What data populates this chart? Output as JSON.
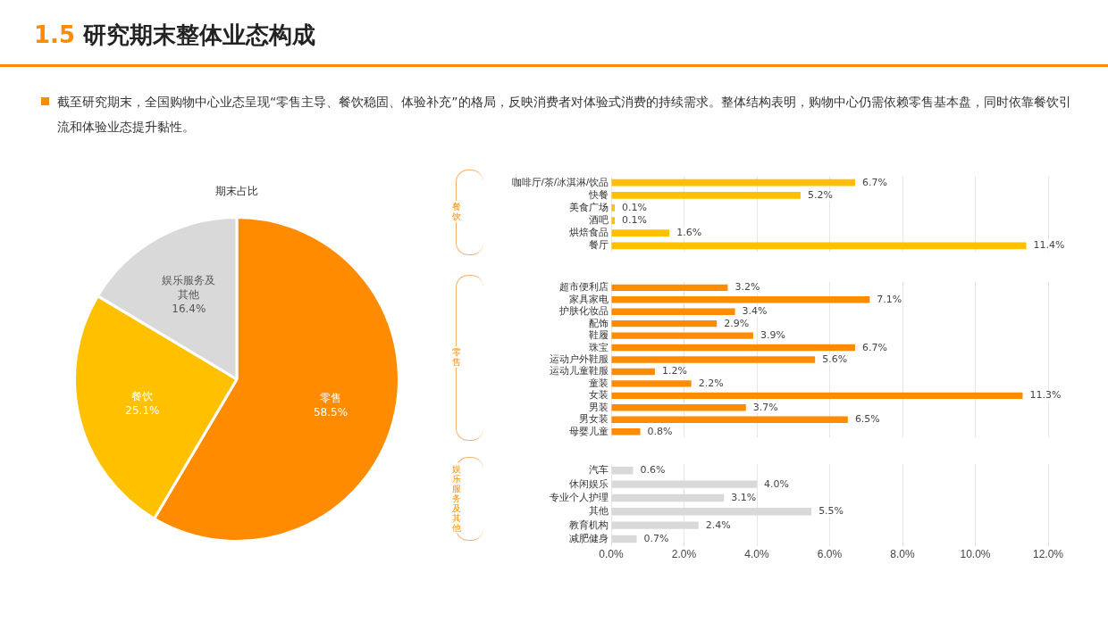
{
  "chart_data": [
    {
      "type": "other",
      "title": "1.5 研究期末整体业态构成",
      "subtitle": "截至研究期末，全国购物中心业态呈现“零售主导、餐饮稳固、体验补充”的格局，反映消费者对体验式消费的持续需求。整体结构表明，购物中心仍需依赖零售基本盘，同时依靠餐饮引流和体验业态提升黏性。"
    },
    {
      "type": "pie",
      "title": "期末占比",
      "categories": [
        "零售",
        "餐饮",
        "娱乐服务及其他"
      ],
      "values": [
        58.5,
        25.1,
        16.4
      ],
      "colors": [
        "#ff8c00",
        "#ffc000",
        "#d9d9d9"
      ],
      "value_labels": [
        "58.5%",
        "25.1%",
        "16.4%"
      ]
    },
    {
      "type": "bar",
      "orientation": "horizontal",
      "ylabel": "餐饮",
      "categories": [
        "咖啡厅/茶/冰淇淋/饮品",
        "快餐",
        "美食广场",
        "酒吧",
        "烘焙食品",
        "餐厅"
      ],
      "values": [
        6.7,
        5.2,
        0.1,
        0.1,
        1.6,
        11.4
      ],
      "color": "#ffc000",
      "value_labels": [
        "6.7%",
        "5.2%",
        "0.1%",
        "0.1%",
        "1.6%",
        "11.4%"
      ],
      "xlim": [
        0,
        12
      ],
      "xticks": [
        0,
        2,
        4,
        6,
        8,
        10,
        12
      ],
      "grid": "x",
      "tick_labels": "y"
    },
    {
      "type": "bar",
      "orientation": "horizontal",
      "ylabel": "零售",
      "categories": [
        "超市便利店",
        "家具家电",
        "护肤化妆品",
        "配饰",
        "鞋履",
        "珠宝",
        "运动户外鞋服",
        "运动儿童鞋服",
        "童装",
        "女装",
        "男装",
        "男女装",
        "母婴儿童"
      ],
      "values": [
        3.2,
        7.1,
        3.4,
        2.9,
        3.9,
        6.7,
        5.6,
        1.2,
        2.2,
        11.3,
        3.7,
        6.5,
        0.8
      ],
      "color": "#ff8c00",
      "value_labels": [
        "3.2%",
        "7.1%",
        "3.4%",
        "2.9%",
        "3.9%",
        "6.7%",
        "5.6%",
        "1.2%",
        "2.2%",
        "11.3%",
        "3.7%",
        "6.5%",
        "0.8%"
      ],
      "xlim": [
        0,
        12
      ],
      "xticks": [
        0,
        2,
        4,
        6,
        8,
        10,
        12
      ],
      "grid": "x",
      "tick_labels": "y"
    },
    {
      "type": "bar",
      "orientation": "horizontal",
      "ylabel": "娱乐服务及其他",
      "categories": [
        "汽车",
        "休闲娱乐",
        "专业个人护理",
        "其他",
        "教育机构",
        "减肥健身"
      ],
      "values": [
        0.6,
        4.0,
        3.1,
        5.5,
        2.4,
        0.7
      ],
      "color": "#d9d9d9",
      "value_labels": [
        "0.6%",
        "4.0%",
        "3.1%",
        "5.5%",
        "2.4%",
        "0.7%"
      ],
      "xlim": [
        0,
        12
      ],
      "xticks": [
        {
          "value": 0,
          "label": "0.0%"
        },
        {
          "value": 2,
          "label": "2.0%"
        },
        {
          "value": 4,
          "label": "4.0%"
        },
        {
          "value": 6,
          "label": "6.0%"
        },
        {
          "value": 8,
          "label": "8.0%"
        },
        {
          "value": 10,
          "label": "10.0%"
        },
        {
          "value": 12,
          "label": "12.0%"
        }
      ],
      "grid": "x"
    }
  ]
}
